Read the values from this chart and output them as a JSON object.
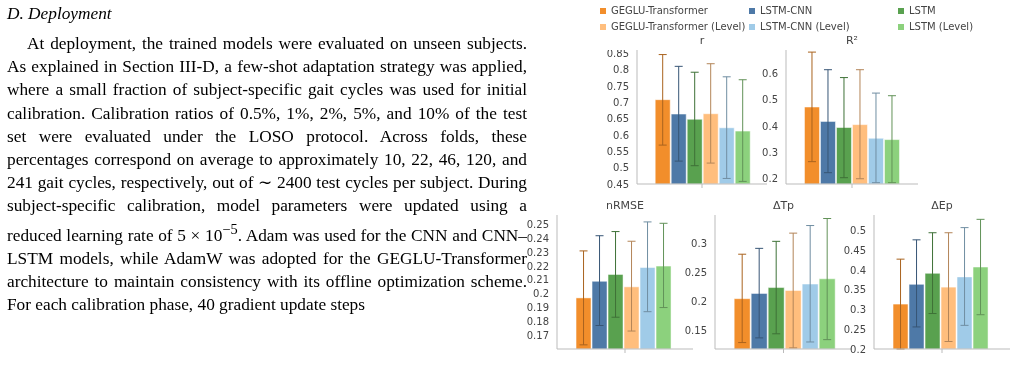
{
  "chart_data": [
    {
      "type": "other",
      "title": "D. Deployment",
      "annotations": [
        "At deployment, the trained models were evaluated on unseen subjects. As explained in Section III-D, a few-shot adaptation strategy was applied, where a small fraction of subject-specific gait cycles was used for initial calibration. Calibration ratios of 0.5%, 1%, 2%, 5%, and 10% of the test set were evaluated under the LOSO protocol. Across folds, these percentages correspond on average to approximately 10, 22, 46, 120, and 241 gait cycles, respectively, out of ∼ 2400 test cycles per subject. During subject-specific calibration, model parameters were updated using a reduced learning rate of 5 × 10$^{−5}$. Adam was used for the CNN and CNN–LSTM models, while AdamW was adopted for the GEGLU-Transformer architecture to maintain consistency with its offline optimization scheme. For each calibration phase, 40 gradient update steps"
      ]
    },
    {
      "type": "bar",
      "title": "r",
      "categories": [
        null
      ],
      "ylim": [
        0.45,
        0.86
      ],
      "yticks": [
        0.45,
        0.5,
        0.55,
        0.6,
        0.65,
        0.7,
        0.75,
        0.8,
        0.85
      ],
      "tick_labels": "y",
      "legend": "top",
      "series": [
        {
          "name": "GEGLU-Transformer",
          "color": "#f28e2b",
          "values": [
            0.708
          ],
          "errors": [
            [
              0.569,
              0.846
            ]
          ]
        },
        {
          "name": "LSTM-CNN",
          "color": "#4e79a7",
          "values": [
            0.664
          ],
          "errors": [
            [
              0.52,
              0.81
            ]
          ]
        },
        {
          "name": "LSTM",
          "color": "#59a14f",
          "values": [
            0.648
          ],
          "errors": [
            [
              0.506,
              0.792
            ]
          ]
        },
        {
          "name": "GEGLU-Transformer (Level)",
          "color": "#ffbe7d",
          "values": [
            0.665
          ],
          "errors": [
            [
              0.514,
              0.818
            ]
          ]
        },
        {
          "name": "LSTM-CNN (Level)",
          "color": "#a0cbe8",
          "values": [
            0.622
          ],
          "errors": [
            [
              0.467,
              0.778
            ]
          ]
        },
        {
          "name": "LSTM (Level)",
          "color": "#8cd17d",
          "values": [
            0.612
          ],
          "errors": [
            [
              0.458,
              0.769
            ]
          ]
        }
      ]
    },
    {
      "type": "bar",
      "title": "R²",
      "categories": [
        null
      ],
      "ylim": [
        0.18,
        0.69
      ],
      "yticks": [
        0.2,
        0.3,
        0.4,
        0.5,
        0.6
      ],
      "tick_labels": "y",
      "series": [
        {
          "color": "#f28e2b",
          "values": [
            0.473
          ],
          "errors": [
            [
              0.265,
              0.682
            ]
          ]
        },
        {
          "color": "#4e79a7",
          "values": [
            0.418
          ],
          "errors": [
            [
              0.223,
              0.615
            ]
          ]
        },
        {
          "color": "#59a14f",
          "values": [
            0.395
          ],
          "errors": [
            [
              0.204,
              0.585
            ]
          ]
        },
        {
          "color": "#ffbe7d",
          "values": [
            0.406
          ],
          "errors": [
            [
              0.2,
              0.615
            ]
          ]
        },
        {
          "color": "#a0cbe8",
          "values": [
            0.354
          ],
          "errors": [
            [
              0.185,
              0.526
            ]
          ]
        },
        {
          "color": "#8cd17d",
          "values": [
            0.349
          ],
          "errors": [
            [
              0.185,
              0.516
            ]
          ]
        }
      ]
    },
    {
      "type": "bar",
      "title": "nRMSE",
      "categories": [
        null
      ],
      "ylim": [
        0.16,
        0.257
      ],
      "yticks": [
        0.17,
        0.18,
        0.19,
        0.2,
        0.21,
        0.22,
        0.23,
        0.24,
        0.25
      ],
      "tick_labels": "y",
      "series": [
        {
          "color": "#f28e2b",
          "values": [
            0.197
          ],
          "errors": [
            [
              0.163,
              0.231
            ]
          ]
        },
        {
          "color": "#4e79a7",
          "values": [
            0.209
          ],
          "errors": [
            [
              0.177,
              0.242
            ]
          ]
        },
        {
          "color": "#59a14f",
          "values": [
            0.214
          ],
          "errors": [
            [
              0.183,
              0.245
            ]
          ]
        },
        {
          "color": "#ffbe7d",
          "values": [
            0.205
          ],
          "errors": [
            [
              0.173,
              0.238
            ]
          ]
        },
        {
          "color": "#a0cbe8",
          "values": [
            0.219
          ],
          "errors": [
            [
              0.187,
              0.252
            ]
          ]
        },
        {
          "color": "#8cd17d",
          "values": [
            0.22
          ],
          "errors": [
            [
              0.19,
              0.251
            ]
          ]
        }
      ]
    },
    {
      "type": "bar",
      "title": "ΔTp",
      "categories": [
        null
      ],
      "ylim": [
        0.119,
        0.348
      ],
      "yticks": [
        0.15,
        0.2,
        0.25,
        0.3
      ],
      "tick_labels": "y",
      "series": [
        {
          "color": "#f28e2b",
          "values": [
            0.205
          ],
          "errors": [
            [
              0.13,
              0.281
            ]
          ]
        },
        {
          "color": "#4e79a7",
          "values": [
            0.214
          ],
          "errors": [
            [
              0.138,
              0.291
            ]
          ]
        },
        {
          "color": "#59a14f",
          "values": [
            0.224
          ],
          "errors": [
            [
              0.145,
              0.303
            ]
          ]
        },
        {
          "color": "#ffbe7d",
          "values": [
            0.219
          ],
          "errors": [
            [
              0.121,
              0.317
            ]
          ]
        },
        {
          "color": "#a0cbe8",
          "values": [
            0.23
          ],
          "errors": [
            [
              0.131,
              0.33
            ]
          ]
        },
        {
          "color": "#8cd17d",
          "values": [
            0.239
          ],
          "errors": [
            [
              0.135,
              0.342
            ]
          ]
        }
      ]
    },
    {
      "type": "bar",
      "title": "ΔEp",
      "categories": [
        null
      ],
      "ylim": [
        0.2,
        0.54
      ],
      "yticks": [
        0.2,
        0.25,
        0.3,
        0.35,
        0.4,
        0.45,
        0.5
      ],
      "tick_labels": "y",
      "series": [
        {
          "color": "#f28e2b",
          "values": [
            0.314
          ],
          "errors": [
            [
              0.2,
              0.428
            ]
          ]
        },
        {
          "color": "#4e79a7",
          "values": [
            0.364
          ],
          "errors": [
            [
              0.256,
              0.477
            ]
          ]
        },
        {
          "color": "#59a14f",
          "values": [
            0.392
          ],
          "errors": [
            [
              0.29,
              0.495
            ]
          ]
        },
        {
          "color": "#ffbe7d",
          "values": [
            0.357
          ],
          "errors": [
            [
              0.219,
              0.495
            ]
          ]
        },
        {
          "color": "#a0cbe8",
          "values": [
            0.383
          ],
          "errors": [
            [
              0.26,
              0.508
            ]
          ]
        },
        {
          "color": "#8cd17d",
          "values": [
            0.408
          ],
          "errors": [
            [
              0.287,
              0.529
            ]
          ]
        }
      ]
    }
  ]
}
